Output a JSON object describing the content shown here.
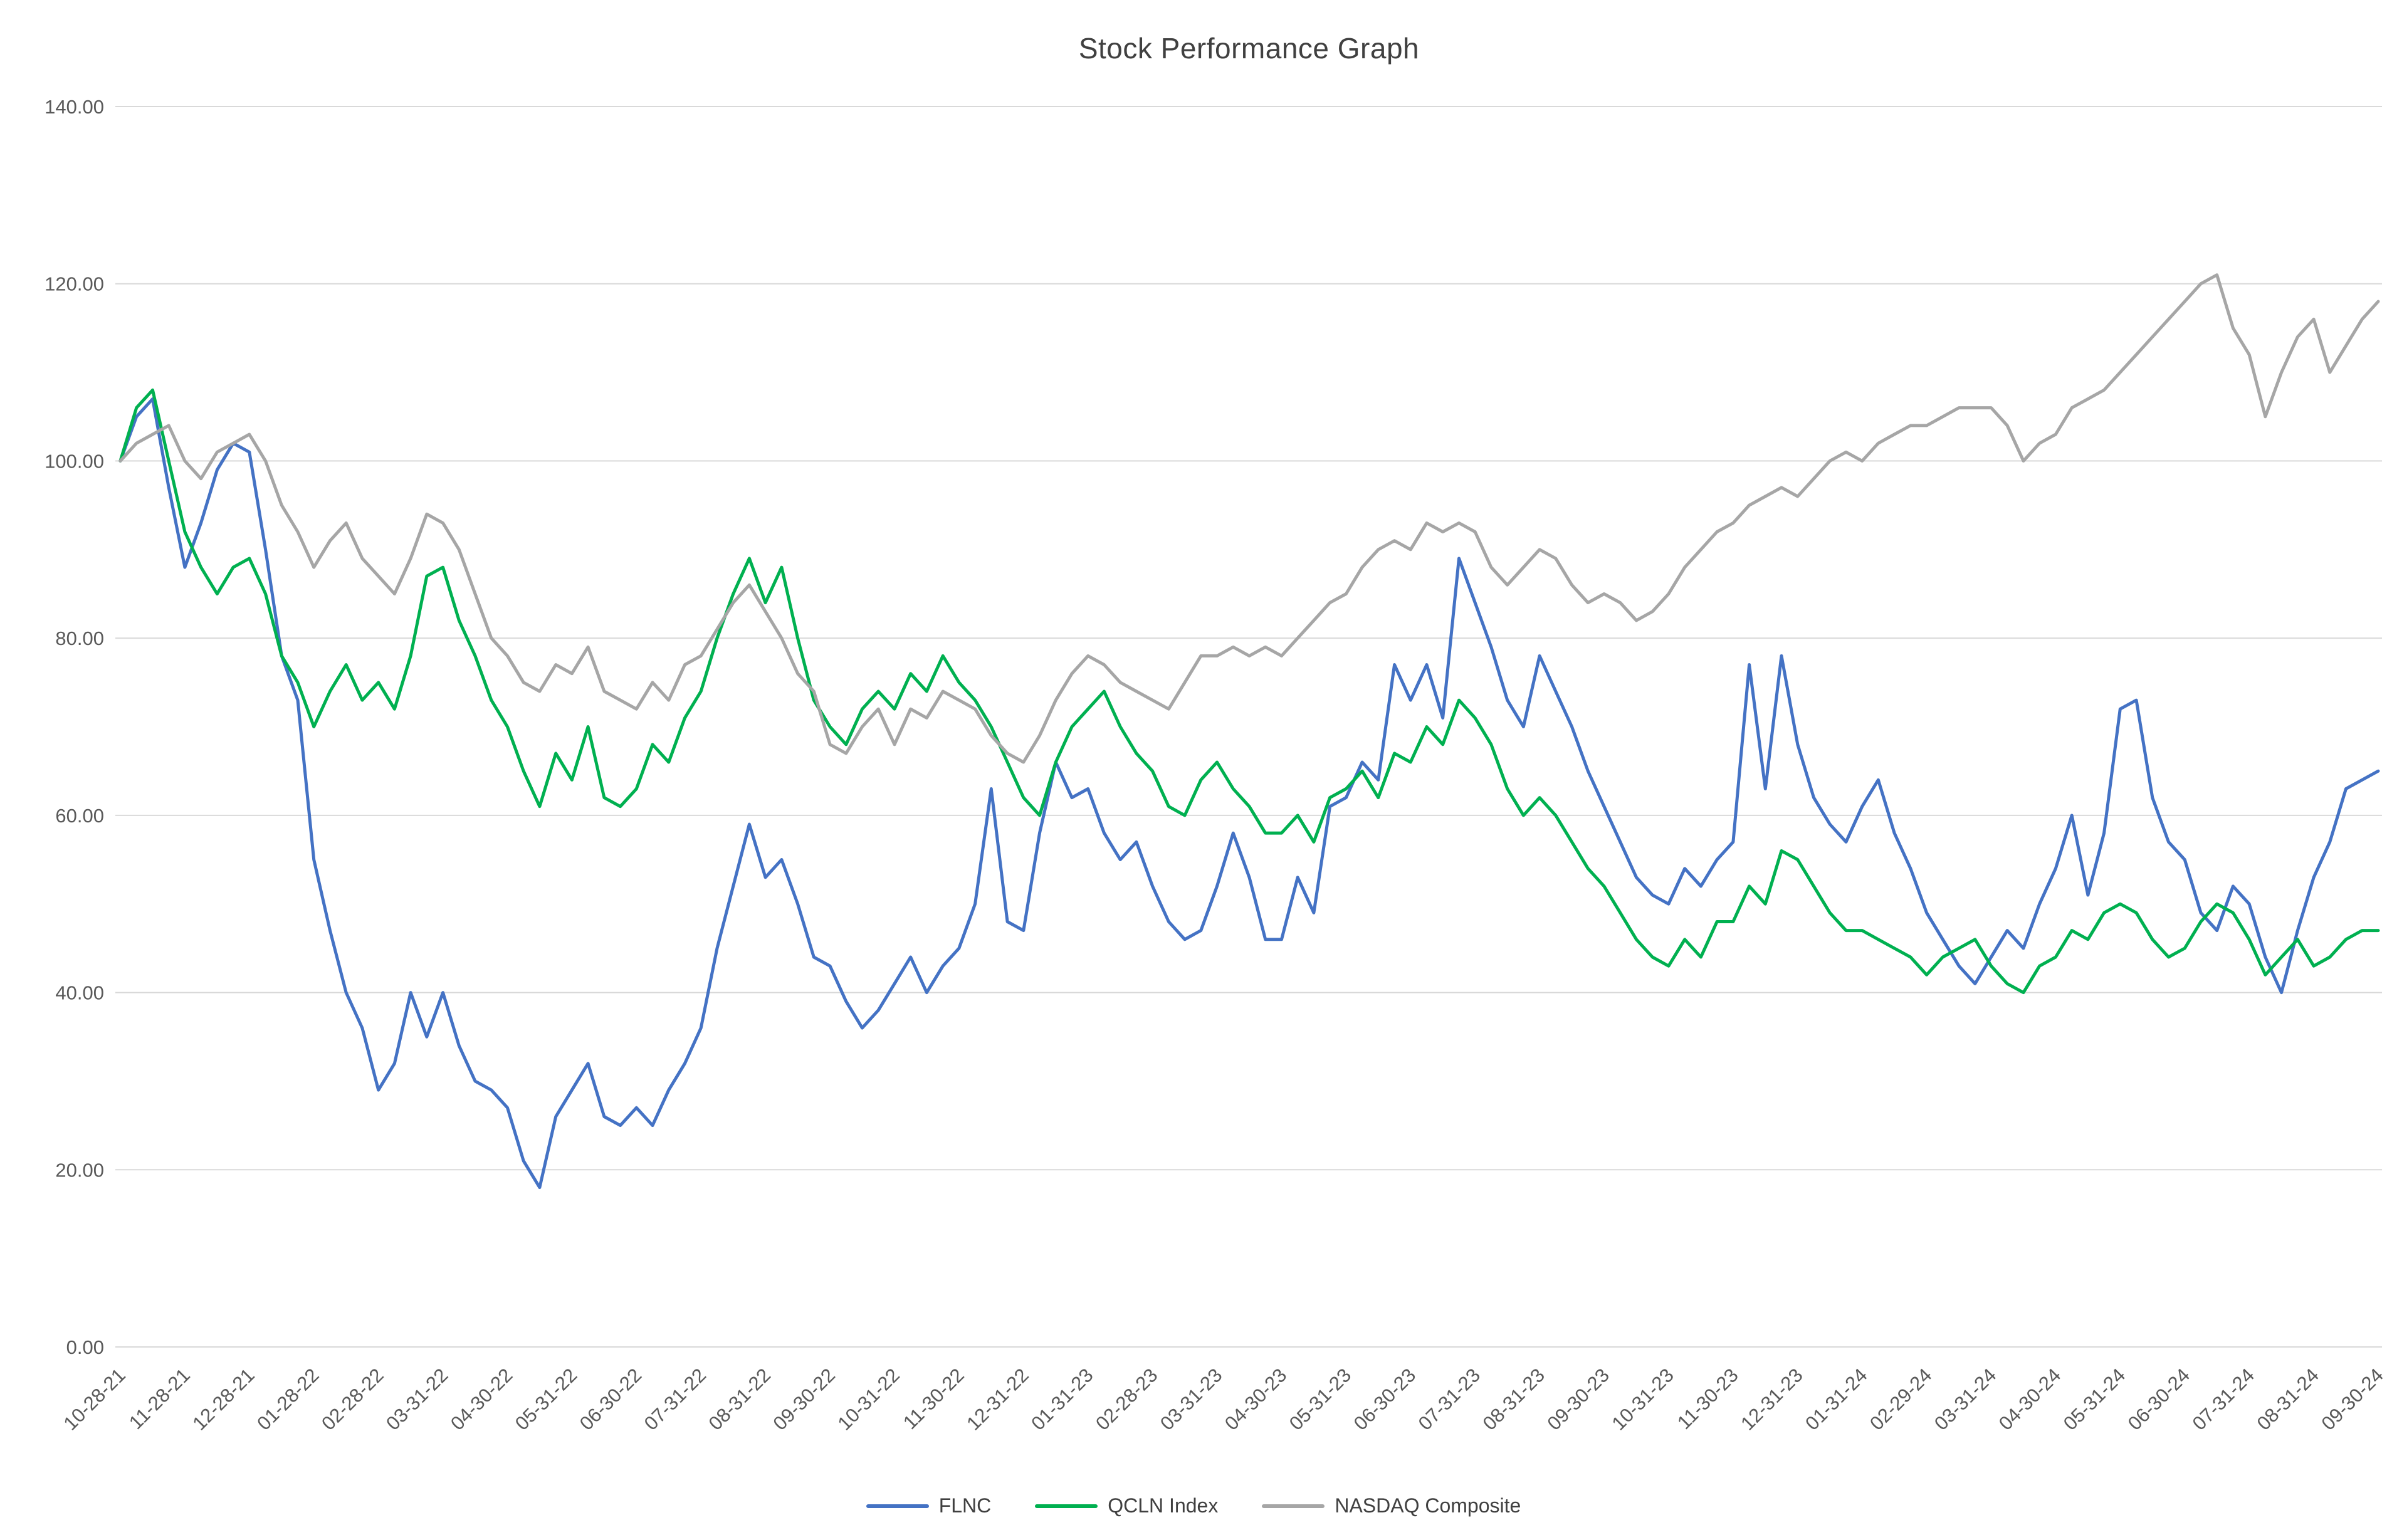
{
  "chart_data": {
    "type": "line",
    "title": "Stock Performance Graph",
    "xlabel": "",
    "ylabel": "",
    "ylim": [
      0,
      140
    ],
    "grid": "horizontal",
    "grid_color": "#D9D9D9",
    "axis_text_color": "#595959",
    "title_color": "#404040",
    "legend_position": "bottom",
    "y_ticks": [
      0,
      20,
      40,
      60,
      80,
      100,
      120,
      140
    ],
    "y_tick_labels": [
      "0.00",
      "20.00",
      "40.00",
      "60.00",
      "80.00",
      "100.00",
      "120.00",
      "140.00"
    ],
    "x_tick_labels": [
      "10-28-21",
      "11-28-21",
      "12-28-21",
      "01-28-22",
      "02-28-22",
      "03-31-22",
      "04-30-22",
      "05-31-22",
      "06-30-22",
      "07-31-22",
      "08-31-22",
      "09-30-22",
      "10-31-22",
      "11-30-22",
      "12-31-22",
      "01-31-23",
      "02-28-23",
      "03-31-23",
      "04-30-23",
      "05-31-23",
      "06-30-23",
      "07-31-23",
      "08-31-23",
      "09-30-23",
      "10-31-23",
      "11-30-23",
      "12-31-23",
      "01-31-24",
      "02-29-24",
      "03-31-24",
      "04-30-24",
      "05-31-24",
      "06-30-24",
      "07-31-24",
      "08-31-24",
      "09-30-24"
    ],
    "series": [
      {
        "name": "FLNC",
        "color": "#4472C4",
        "values": [
          100,
          105,
          107,
          97,
          88,
          93,
          99,
          102,
          101,
          90,
          78,
          73,
          55,
          47,
          40,
          36,
          29,
          32,
          40,
          35,
          40,
          34,
          30,
          29,
          27,
          21,
          18,
          26,
          29,
          32,
          26,
          25,
          27,
          25,
          29,
          32,
          36,
          45,
          52,
          59,
          53,
          55,
          50,
          44,
          43,
          39,
          36,
          38,
          41,
          44,
          40,
          43,
          45,
          50,
          63,
          48,
          47,
          58,
          66,
          62,
          63,
          58,
          55,
          57,
          52,
          48,
          46,
          47,
          52,
          58,
          53,
          46,
          46,
          53,
          49,
          61,
          62,
          66,
          64,
          77,
          73,
          77,
          71,
          89,
          84,
          79,
          73,
          70,
          78,
          74,
          70,
          65,
          61,
          57,
          53,
          51,
          50,
          54,
          52,
          55,
          57,
          77,
          63,
          78,
          68,
          62,
          59,
          57,
          61,
          64,
          58,
          54,
          49,
          46,
          43,
          41,
          44,
          47,
          45,
          50,
          54,
          60,
          51,
          58,
          72,
          73,
          62,
          57,
          55,
          49,
          47,
          52,
          50,
          44,
          40,
          47,
          53,
          57,
          63,
          64,
          65
        ]
      },
      {
        "name": "QCLN Index",
        "color": "#00B050",
        "values": [
          100,
          106,
          108,
          100,
          92,
          88,
          85,
          88,
          89,
          85,
          78,
          75,
          70,
          74,
          77,
          73,
          75,
          72,
          78,
          87,
          88,
          82,
          78,
          73,
          70,
          65,
          61,
          67,
          64,
          70,
          62,
          61,
          63,
          68,
          66,
          71,
          74,
          80,
          85,
          89,
          84,
          88,
          80,
          73,
          70,
          68,
          72,
          74,
          72,
          76,
          74,
          78,
          75,
          73,
          70,
          66,
          62,
          60,
          66,
          70,
          72,
          74,
          70,
          67,
          65,
          61,
          60,
          64,
          66,
          63,
          61,
          58,
          58,
          60,
          57,
          62,
          63,
          65,
          62,
          67,
          66,
          70,
          68,
          73,
          71,
          68,
          63,
          60,
          62,
          60,
          57,
          54,
          52,
          49,
          46,
          44,
          43,
          46,
          44,
          48,
          48,
          52,
          50,
          56,
          55,
          52,
          49,
          47,
          47,
          46,
          45,
          44,
          42,
          44,
          45,
          46,
          43,
          41,
          40,
          43,
          44,
          47,
          46,
          49,
          50,
          49,
          46,
          44,
          45,
          48,
          50,
          49,
          46,
          42,
          44,
          46,
          43,
          44,
          46,
          47,
          47
        ]
      },
      {
        "name": "NASDAQ Composite",
        "color": "#A6A6A6",
        "values": [
          100,
          102,
          103,
          104,
          100,
          98,
          101,
          102,
          103,
          100,
          95,
          92,
          88,
          91,
          93,
          89,
          87,
          85,
          89,
          94,
          93,
          90,
          85,
          80,
          78,
          75,
          74,
          77,
          76,
          79,
          74,
          73,
          72,
          75,
          73,
          77,
          78,
          81,
          84,
          86,
          83,
          80,
          76,
          74,
          68,
          67,
          70,
          72,
          68,
          72,
          71,
          74,
          73,
          72,
          69,
          67,
          66,
          69,
          73,
          76,
          78,
          77,
          75,
          74,
          73,
          72,
          75,
          78,
          78,
          79,
          78,
          79,
          78,
          80,
          82,
          84,
          85,
          88,
          90,
          91,
          90,
          93,
          92,
          93,
          92,
          88,
          86,
          88,
          90,
          89,
          86,
          84,
          85,
          84,
          82,
          83,
          85,
          88,
          90,
          92,
          93,
          95,
          96,
          97,
          96,
          98,
          100,
          101,
          100,
          102,
          103,
          104,
          104,
          105,
          106,
          106,
          106,
          104,
          100,
          102,
          103,
          106,
          107,
          108,
          110,
          112,
          114,
          116,
          118,
          120,
          121,
          115,
          112,
          105,
          110,
          114,
          116,
          110,
          113,
          116,
          118
        ]
      }
    ]
  }
}
